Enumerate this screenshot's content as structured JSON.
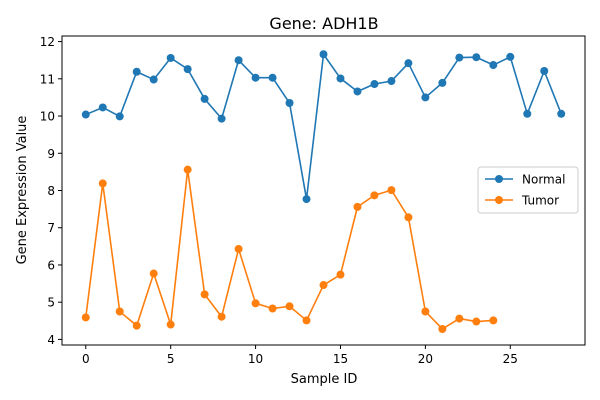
{
  "chart_data": {
    "type": "line",
    "title": "Gene: ADH1B",
    "xlabel": "Sample ID",
    "ylabel": "Gene Expression Value",
    "xlim": [
      -1.4,
      29.4
    ],
    "ylim": [
      3.85,
      12.15
    ],
    "xticks": [
      0,
      5,
      10,
      15,
      20,
      25
    ],
    "yticks": [
      4,
      5,
      6,
      7,
      8,
      9,
      10,
      11,
      12
    ],
    "grid": false,
    "legend_position": "center-right",
    "series": [
      {
        "name": "Normal",
        "color": "#1f77b4",
        "x": [
          0,
          1,
          2,
          3,
          4,
          5,
          6,
          7,
          8,
          9,
          10,
          11,
          12,
          13,
          14,
          15,
          16,
          17,
          18,
          19,
          20,
          21,
          22,
          23,
          24,
          25,
          26,
          27,
          28
        ],
        "values": [
          10.04,
          10.23,
          9.99,
          11.19,
          10.98,
          11.56,
          11.26,
          10.46,
          9.93,
          11.5,
          11.03,
          11.03,
          10.35,
          7.77,
          11.66,
          11.01,
          10.66,
          10.86,
          10.94,
          11.42,
          10.5,
          10.89,
          11.57,
          11.58,
          11.37,
          11.59,
          10.06,
          11.21,
          10.06
        ]
      },
      {
        "name": "Tumor",
        "color": "#ff7f0e",
        "x": [
          0,
          1,
          2,
          3,
          4,
          5,
          6,
          7,
          8,
          9,
          10,
          11,
          12,
          13,
          14,
          15,
          16,
          17,
          18,
          19,
          20,
          21,
          22,
          23,
          24
        ],
        "values": [
          4.59,
          8.19,
          4.75,
          4.37,
          5.77,
          4.4,
          8.56,
          5.21,
          4.61,
          6.43,
          4.97,
          4.83,
          4.89,
          4.51,
          5.46,
          5.74,
          7.56,
          7.87,
          8.01,
          7.28,
          4.75,
          4.28,
          4.56,
          4.48,
          4.51
        ]
      }
    ]
  }
}
